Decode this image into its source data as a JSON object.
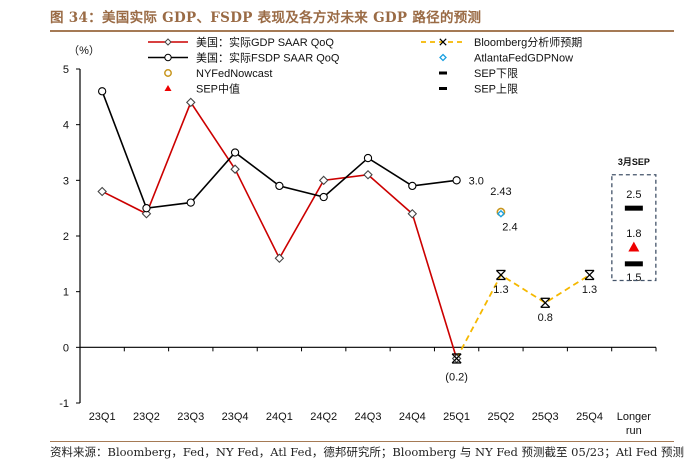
{
  "header": {
    "title": "图 34：美国实际 GDP、FSDP 表现及各方对未来 GDP 路径的预测"
  },
  "footer": {
    "source": "资料来源：Bloomberg，Fed，NY Fed，Atl Fed，德邦研究所；Bloomberg 与 NY Fed 预测截至 05/23；Atl Fed 预测"
  },
  "colors": {
    "gdp": "#cc0000",
    "fsdp": "#000000",
    "bloomberg": "#f5b800",
    "nyfed": "#c8961e",
    "atlanta": "#1aa0e0",
    "sep_median": "#ee0000",
    "sep_box": "#44546a",
    "title": "#9a6b45"
  },
  "chart_data": {
    "type": "line",
    "title": "图 34：美国实际 GDP、FSDP 表现及各方对未来 GDP 路径的预测",
    "ylabel": "（%）",
    "xlabel": "",
    "ylim": [
      -1,
      5
    ],
    "yticks": [
      -1,
      0,
      1,
      2,
      3,
      4,
      5
    ],
    "categories": [
      "23Q1",
      "23Q2",
      "23Q3",
      "23Q4",
      "24Q1",
      "24Q2",
      "24Q3",
      "24Q4",
      "25Q1",
      "25Q2",
      "25Q3",
      "25Q4",
      "Longer run"
    ],
    "category_lines": [
      [
        "23Q1"
      ],
      [
        "23Q2"
      ],
      [
        "23Q3"
      ],
      [
        "23Q4"
      ],
      [
        "24Q1"
      ],
      [
        "24Q2"
      ],
      [
        "24Q3"
      ],
      [
        "24Q4"
      ],
      [
        "25Q1"
      ],
      [
        "25Q2"
      ],
      [
        "25Q3"
      ],
      [
        "25Q4"
      ],
      [
        "Longer",
        "run"
      ]
    ],
    "grid": false,
    "legend_position": "top",
    "series": [
      {
        "name": "美国：实际GDP SAAR QoQ",
        "key": "gdp",
        "style": "solid-line-diamond",
        "values": [
          2.8,
          2.4,
          4.4,
          3.2,
          1.6,
          3.0,
          3.1,
          2.4,
          -0.2,
          null,
          null,
          null,
          null
        ]
      },
      {
        "name": "美国：实际FSDP  SAAR QoQ",
        "key": "fsdp",
        "style": "solid-line-circle",
        "values": [
          4.6,
          2.5,
          2.6,
          3.5,
          2.9,
          2.7,
          3.4,
          2.9,
          3.0,
          null,
          null,
          null,
          null
        ]
      },
      {
        "name": "Bloomberg分析师预期",
        "key": "bloomberg",
        "style": "dashed-line-asterisk",
        "values": [
          null,
          null,
          null,
          null,
          null,
          null,
          null,
          null,
          -0.2,
          1.3,
          0.8,
          1.3,
          null
        ]
      },
      {
        "name": "NYFedNowcast",
        "key": "nyfed",
        "style": "circle-marker",
        "values": [
          null,
          null,
          null,
          null,
          null,
          null,
          null,
          null,
          null,
          2.43,
          null,
          null,
          null
        ]
      },
      {
        "name": "AtlantaFedGDPNow",
        "key": "atlanta",
        "style": "diamond-marker",
        "values": [
          null,
          null,
          null,
          null,
          null,
          null,
          null,
          null,
          null,
          2.4,
          null,
          null,
          null
        ]
      },
      {
        "name": "SEP中值",
        "key": "sep_median",
        "style": "triangle-marker",
        "values": [
          null,
          null,
          null,
          null,
          null,
          null,
          null,
          null,
          null,
          null,
          null,
          null,
          1.8
        ]
      },
      {
        "name": "SEP下限",
        "key": "sep_lower",
        "style": "dash-marker",
        "values": [
          null,
          null,
          null,
          null,
          null,
          null,
          null,
          null,
          null,
          null,
          null,
          null,
          1.5
        ]
      },
      {
        "name": "SEP上限",
        "key": "sep_upper",
        "style": "dash-marker",
        "values": [
          null,
          null,
          null,
          null,
          null,
          null,
          null,
          null,
          null,
          null,
          null,
          null,
          2.5
        ]
      }
    ],
    "annotations": [
      {
        "text": "3.0",
        "category": "25Q1",
        "value": 3.0,
        "anchor": "right"
      },
      {
        "text": "(0.2)",
        "category": "25Q1",
        "value": -0.2,
        "anchor": "below",
        "color": "#ee3333"
      },
      {
        "text": "2.43",
        "category": "25Q2",
        "value": 2.43,
        "anchor": "above"
      },
      {
        "text": "2.4",
        "category": "25Q2",
        "value": 2.4,
        "anchor": "below"
      },
      {
        "text": "1.3",
        "category": "25Q2",
        "value": 1.3,
        "anchor": "below"
      },
      {
        "text": "0.8",
        "category": "25Q3",
        "value": 0.8,
        "anchor": "below"
      },
      {
        "text": "1.3",
        "category": "25Q4",
        "value": 1.3,
        "anchor": "below"
      },
      {
        "text": "2.5",
        "category": "Longer run",
        "value": 2.5,
        "anchor": "above"
      },
      {
        "text": "1.8",
        "category": "Longer run",
        "value": 1.8,
        "anchor": "above"
      },
      {
        "text": "1.5",
        "category": "Longer run",
        "value": 1.5,
        "anchor": "below"
      }
    ],
    "sep_box": {
      "title": "3月SEP",
      "category": "Longer run",
      "range": [
        1.2,
        3.1
      ]
    }
  }
}
